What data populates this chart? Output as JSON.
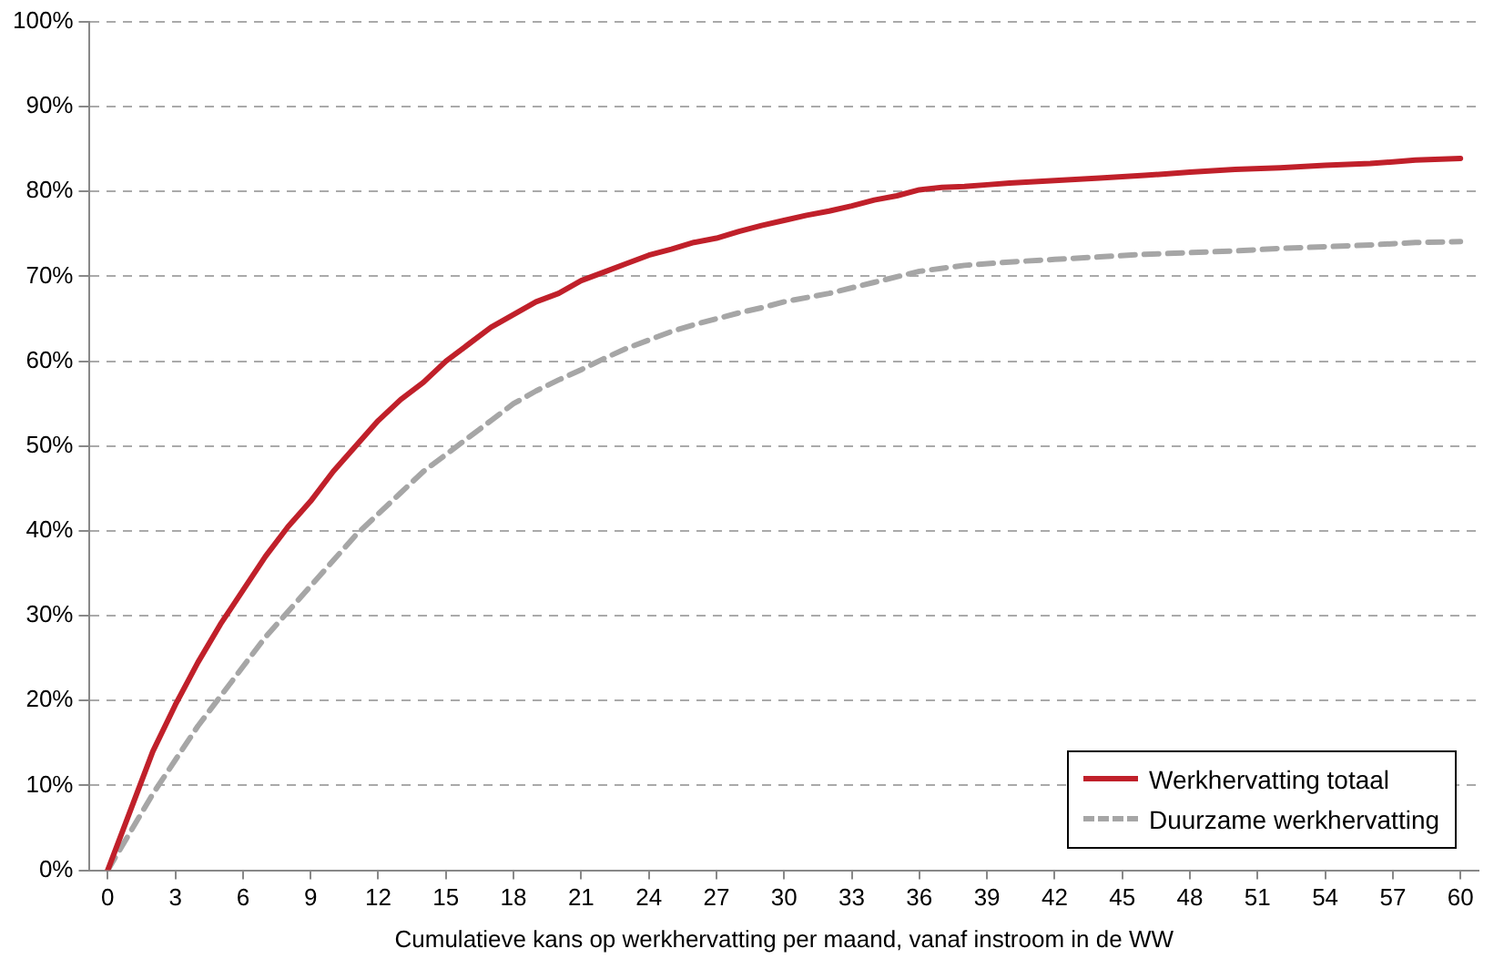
{
  "chart_data": {
    "type": "line",
    "xlabel": "Cumulatieve kans op werkhervatting per maand, vanaf instroom in de WW",
    "xlim": [
      -0.8,
      60.8
    ],
    "xticks": [
      0,
      3,
      6,
      9,
      12,
      15,
      18,
      21,
      24,
      27,
      30,
      33,
      36,
      39,
      42,
      45,
      48,
      51,
      54,
      57,
      60
    ],
    "ylim": [
      0,
      100
    ],
    "yticks": [
      {
        "value": 0,
        "label": "0%"
      },
      {
        "value": 10,
        "label": "10%"
      },
      {
        "value": 20,
        "label": "20%"
      },
      {
        "value": 30,
        "label": "30%"
      },
      {
        "value": 40,
        "label": "40%"
      },
      {
        "value": 50,
        "label": "50%"
      },
      {
        "value": 60,
        "label": "60%"
      },
      {
        "value": 70,
        "label": "70%"
      },
      {
        "value": 80,
        "label": "80%"
      },
      {
        "value": 90,
        "label": "90%"
      },
      {
        "value": 100,
        "label": "100%"
      }
    ],
    "grid": "y",
    "legend": "bottom right",
    "marker": "none",
    "series": [
      {
        "name": "Werkhervatting totaal",
        "color": "#c0202a",
        "line_style": "solid",
        "x": [
          0,
          1,
          2,
          3,
          4,
          5,
          6,
          7,
          8,
          9,
          10,
          11,
          12,
          13,
          14,
          15,
          16,
          17,
          18,
          19,
          20,
          21,
          22,
          23,
          24,
          25,
          26,
          27,
          28,
          29,
          30,
          31,
          32,
          33,
          34,
          35,
          36,
          37,
          38,
          39,
          40,
          42,
          44,
          46,
          48,
          50,
          52,
          54,
          56,
          58,
          60
        ],
        "values": [
          0,
          7,
          14,
          19.5,
          24.5,
          29,
          33,
          37,
          40.5,
          43.5,
          47,
          50,
          53,
          55.5,
          57.5,
          60,
          62,
          64,
          65.5,
          67,
          68,
          69.5,
          70.5,
          71.5,
          72.5,
          73.2,
          74,
          74.5,
          75.3,
          76,
          76.6,
          77.2,
          77.7,
          78.3,
          79,
          79.5,
          80.2,
          80.5,
          80.6,
          80.8,
          81,
          81.3,
          81.6,
          81.9,
          82.3,
          82.6,
          82.8,
          83.1,
          83.3,
          83.7,
          83.9
        ]
      },
      {
        "name": "Duurzame werkhervatting",
        "color": "#a6a6a6",
        "line_style": "dashed",
        "x": [
          0,
          2,
          3,
          4,
          5,
          6,
          7,
          8,
          9,
          10,
          11,
          12,
          13,
          14,
          15,
          16,
          17,
          18,
          19,
          20,
          21,
          22,
          23,
          24,
          25,
          26,
          27,
          28,
          29,
          30,
          32,
          34,
          36,
          38,
          40,
          42,
          44,
          46,
          48,
          50,
          52,
          54,
          56,
          58,
          60
        ],
        "values": [
          0,
          9,
          13,
          17,
          20.5,
          24,
          27.5,
          30.5,
          33.5,
          36.5,
          39.5,
          42,
          44.5,
          47,
          49,
          51,
          53,
          55,
          56.5,
          57.8,
          59,
          60.3,
          61.5,
          62.5,
          63.5,
          64.3,
          65,
          65.7,
          66.3,
          67,
          68,
          69.3,
          70.6,
          71.3,
          71.7,
          72,
          72.3,
          72.6,
          72.8,
          73,
          73.3,
          73.5,
          73.7,
          74,
          74.1
        ]
      }
    ]
  }
}
